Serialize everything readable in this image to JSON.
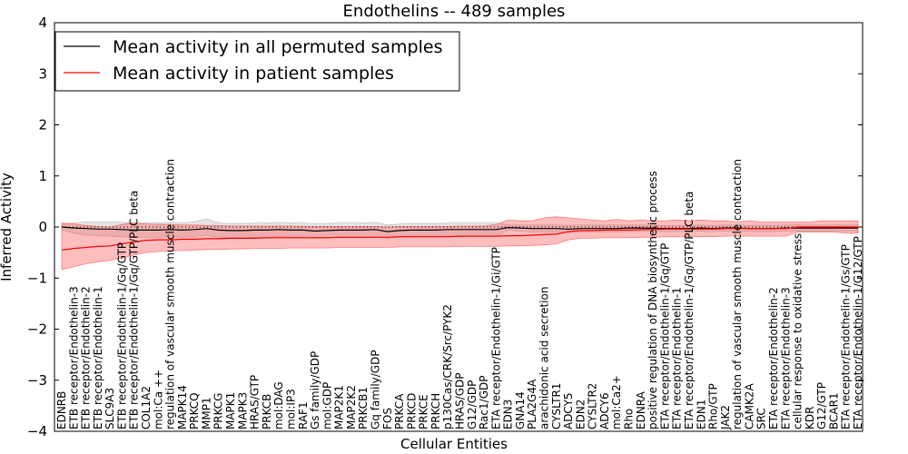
{
  "chart_data": {
    "type": "line",
    "title": "Endothelins -- 489 samples",
    "xlabel": "Cellular Entities",
    "ylabel": "Inferred Activity",
    "ylim": [
      -4,
      4
    ],
    "yticks": [
      -4,
      -3,
      -2,
      -1,
      0,
      1,
      2,
      3,
      4
    ],
    "legend_position": "top-left",
    "reference_line": 0,
    "categories": [
      "EDNRB",
      "ETB receptor/Endothelin-3",
      "ETB receptor/Endothelin-2",
      "ETB receptor/Endothelin-1",
      "SLC9A3",
      "ETB receptor/Endothelin-1/Gq/GTP",
      "ETB receptor/Endothelin-1/Gq/GTP/PLC beta",
      "COL1A2",
      "mol:Ca ++",
      "regulation of vascular smooth muscle contraction",
      "MAPK14",
      "PRKCQ",
      "MMP1",
      "PRKCG",
      "MAPK1",
      "MAPK3",
      "HRAS/GTP",
      "PRKCB",
      "mol:DAG",
      "mol:IP3",
      "RAF1",
      "Gs family/GDP",
      "mol:GDP",
      "MAP2K1",
      "MAP2K2",
      "PRKCB1",
      "Gq family/GDP",
      "FOS",
      "PRKCA",
      "PRKCD",
      "PRKCE",
      "PRKCH",
      "p130Cas/CRK/Src/PYK2",
      "HRAS/GDP",
      "G12/GDP",
      "Rac1/GDP",
      "ETA receptor/Endothelin-1/Gi/GTP",
      "EDN3",
      "GNA14",
      "PLA2G4A",
      "arachidonic acid secretion",
      "CYSLTR1",
      "ADCY5",
      "EDN2",
      "CYSLTR2",
      "ADCY6",
      "mol:Ca2+",
      "Rho",
      "EDNRA",
      "positive regulation of DNA biosynthetic process",
      "ETA receptor/Endothelin-1/Gq/GTP",
      "ETA receptor/Endothelin-1",
      "ETA receptor/Endothelin-1/Gq/GTP/PLC beta",
      "EDN1",
      "Rho/GTP",
      "JAK2",
      "regulation of vascular smooth muscle contraction",
      "CAMK2A",
      "SRC",
      "ETA receptor/Endothelin-2",
      "ETA receptor/Endothelin-3",
      "cellular response to oxidative stress",
      "KDR",
      "G12/GTP",
      "BCAR1",
      "ETA receptor/Endothelin-1/Gs/GTP",
      "ETA receptor/Endothelin-1/G12/GTP"
    ],
    "series": [
      {
        "name": "Mean activity in all permuted samples",
        "color": "#000000",
        "values": [
          0.0,
          -0.02,
          -0.03,
          -0.04,
          -0.04,
          -0.05,
          -0.06,
          -0.06,
          -0.06,
          -0.05,
          -0.06,
          -0.05,
          -0.03,
          -0.06,
          -0.07,
          -0.07,
          -0.06,
          -0.06,
          -0.05,
          -0.06,
          -0.06,
          -0.08,
          -0.07,
          -0.06,
          -0.06,
          -0.06,
          -0.05,
          -0.09,
          -0.07,
          -0.06,
          -0.06,
          -0.06,
          -0.05,
          -0.05,
          -0.05,
          -0.05,
          -0.05,
          -0.01,
          -0.02,
          -0.03,
          -0.03,
          -0.03,
          -0.04,
          -0.03,
          -0.03,
          -0.03,
          -0.03,
          -0.02,
          -0.02,
          -0.03,
          -0.03,
          -0.03,
          -0.03,
          -0.02,
          -0.03,
          -0.02,
          -0.02,
          -0.03,
          -0.03,
          -0.03,
          -0.02,
          -0.02,
          -0.02,
          -0.02,
          -0.02,
          -0.02,
          -0.02
        ],
        "band_lower": [
          -0.05,
          -0.12,
          -0.16,
          -0.17,
          -0.18,
          -0.19,
          -0.2,
          -0.2,
          -0.2,
          -0.19,
          -0.2,
          -0.19,
          -0.16,
          -0.2,
          -0.21,
          -0.21,
          -0.2,
          -0.2,
          -0.19,
          -0.2,
          -0.2,
          -0.22,
          -0.21,
          -0.2,
          -0.2,
          -0.2,
          -0.19,
          -0.22,
          -0.2,
          -0.19,
          -0.19,
          -0.19,
          -0.18,
          -0.18,
          -0.18,
          -0.18,
          -0.18,
          -0.06,
          -0.08,
          -0.1,
          -0.1,
          -0.1,
          -0.11,
          -0.1,
          -0.1,
          -0.1,
          -0.1,
          -0.08,
          -0.08,
          -0.09,
          -0.09,
          -0.09,
          -0.09,
          -0.08,
          -0.09,
          -0.08,
          -0.08,
          -0.09,
          -0.09,
          -0.09,
          -0.08,
          -0.08,
          -0.08,
          -0.08,
          -0.08,
          -0.08,
          -0.08
        ],
        "band_upper": [
          0.05,
          0.08,
          0.1,
          0.1,
          0.1,
          0.09,
          0.08,
          0.08,
          0.08,
          0.09,
          0.08,
          0.1,
          0.16,
          0.08,
          0.07,
          0.07,
          0.08,
          0.08,
          0.09,
          0.08,
          0.08,
          0.06,
          0.07,
          0.08,
          0.08,
          0.08,
          0.09,
          0.04,
          0.06,
          0.07,
          0.07,
          0.07,
          0.08,
          0.08,
          0.08,
          0.08,
          0.08,
          0.04,
          0.04,
          0.04,
          0.04,
          0.04,
          0.03,
          0.04,
          0.04,
          0.04,
          0.04,
          0.04,
          0.04,
          0.03,
          0.03,
          0.03,
          0.03,
          0.04,
          0.03,
          0.04,
          0.04,
          0.03,
          0.03,
          0.03,
          0.04,
          0.04,
          0.04,
          0.04,
          0.04,
          0.04,
          0.04
        ]
      },
      {
        "name": "Mean activity in patient samples",
        "color": "#ff0000",
        "values": [
          -0.45,
          -0.42,
          -0.4,
          -0.38,
          -0.37,
          -0.33,
          -0.29,
          -0.26,
          -0.25,
          -0.25,
          -0.24,
          -0.24,
          -0.23,
          -0.23,
          -0.22,
          -0.22,
          -0.22,
          -0.21,
          -0.21,
          -0.21,
          -0.21,
          -0.21,
          -0.21,
          -0.2,
          -0.2,
          -0.2,
          -0.2,
          -0.2,
          -0.19,
          -0.19,
          -0.19,
          -0.19,
          -0.19,
          -0.18,
          -0.18,
          -0.18,
          -0.18,
          -0.17,
          -0.17,
          -0.16,
          -0.15,
          -0.14,
          -0.09,
          -0.07,
          -0.07,
          -0.06,
          -0.06,
          -0.06,
          -0.05,
          -0.05,
          -0.04,
          -0.04,
          -0.04,
          -0.04,
          -0.04,
          -0.03,
          -0.03,
          -0.03,
          -0.03,
          -0.03,
          -0.03,
          0.0,
          0.0,
          0.0,
          0.0,
          0.0,
          0.0
        ],
        "band_lower": [
          -0.83,
          -0.78,
          -0.72,
          -0.68,
          -0.65,
          -0.6,
          -0.55,
          -0.5,
          -0.48,
          -0.47,
          -0.46,
          -0.45,
          -0.44,
          -0.44,
          -0.43,
          -0.43,
          -0.42,
          -0.42,
          -0.42,
          -0.41,
          -0.41,
          -0.41,
          -0.41,
          -0.4,
          -0.4,
          -0.4,
          -0.4,
          -0.4,
          -0.39,
          -0.39,
          -0.39,
          -0.39,
          -0.39,
          -0.38,
          -0.38,
          -0.38,
          -0.38,
          -0.37,
          -0.37,
          -0.36,
          -0.35,
          -0.33,
          -0.25,
          -0.22,
          -0.22,
          -0.21,
          -0.21,
          -0.21,
          -0.2,
          -0.2,
          -0.19,
          -0.19,
          -0.19,
          -0.19,
          -0.19,
          -0.18,
          -0.18,
          -0.18,
          -0.18,
          -0.18,
          -0.18,
          -0.1,
          -0.1,
          -0.1,
          -0.1,
          -0.12,
          -0.12
        ],
        "band_upper": [
          0.08,
          0.06,
          0.03,
          0.01,
          0.0,
          0.05,
          0.08,
          0.06,
          0.05,
          0.05,
          0.04,
          0.04,
          0.03,
          0.03,
          0.02,
          0.02,
          0.02,
          0.02,
          0.02,
          0.02,
          0.01,
          0.01,
          0.01,
          0.01,
          0.01,
          0.01,
          0.01,
          0.0,
          0.01,
          0.01,
          0.01,
          0.01,
          0.01,
          0.02,
          0.02,
          0.02,
          0.05,
          0.14,
          0.12,
          0.12,
          0.18,
          0.2,
          0.18,
          0.16,
          0.14,
          0.12,
          0.15,
          0.12,
          0.14,
          0.12,
          0.12,
          0.14,
          0.12,
          0.14,
          0.12,
          0.12,
          0.1,
          0.12,
          0.1,
          0.1,
          0.1,
          0.1,
          0.1,
          0.12,
          0.12,
          0.12,
          0.12
        ]
      }
    ]
  }
}
